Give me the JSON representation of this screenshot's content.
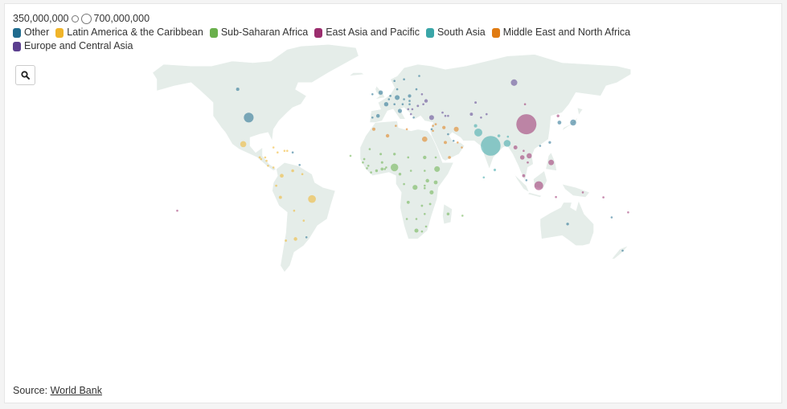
{
  "legend": {
    "size_small_label": "350,000,000",
    "size_large_label": "700,000,000",
    "categories": [
      {
        "label": "Other",
        "color": "#1f6b8e"
      },
      {
        "label": "Latin America & the Caribbean",
        "color": "#f0b429"
      },
      {
        "label": "Sub-Saharan Africa",
        "color": "#6ab04c"
      },
      {
        "label": "East Asia and Pacific",
        "color": "#9b2d6e"
      },
      {
        "label": "South Asia",
        "color": "#3aa6a8"
      },
      {
        "label": "Middle East and North Africa",
        "color": "#e07b12"
      },
      {
        "label": "Europe and Central Asia",
        "color": "#5b3f8f"
      }
    ]
  },
  "map": {
    "land_color": "#e5ede9",
    "bubble_opacity": 0.55,
    "bubbles": [
      {
        "lon": 104,
        "lat": 35,
        "pop": 1400,
        "region": "East Asia and Pacific"
      },
      {
        "lon": 78,
        "lat": 22,
        "pop": 1350,
        "region": "South Asia"
      },
      {
        "lon": -98,
        "lat": 39,
        "pop": 330,
        "region": "Other"
      },
      {
        "lon": 113,
        "lat": -2,
        "pop": 270,
        "region": "East Asia and Pacific"
      },
      {
        "lon": 69,
        "lat": 30,
        "pop": 220,
        "region": "South Asia"
      },
      {
        "lon": -52,
        "lat": -10,
        "pop": 210,
        "region": "Latin America & the Caribbean"
      },
      {
        "lon": 8,
        "lat": 9,
        "pop": 200,
        "region": "Sub-Saharan Africa"
      },
      {
        "lon": 90,
        "lat": 23.5,
        "pop": 165,
        "region": "South Asia"
      },
      {
        "lon": 95,
        "lat": 60,
        "pop": 145,
        "region": "Europe and Central Asia"
      },
      {
        "lon": -102,
        "lat": 23,
        "pop": 128,
        "region": "Latin America & the Caribbean"
      },
      {
        "lon": 138,
        "lat": 36,
        "pop": 126,
        "region": "Other"
      },
      {
        "lon": 39,
        "lat": 8,
        "pop": 112,
        "region": "Sub-Saharan Africa"
      },
      {
        "lon": 122,
        "lat": 12,
        "pop": 108,
        "region": "East Asia and Pacific"
      },
      {
        "lon": 30,
        "lat": 26,
        "pop": 100,
        "region": "Middle East and North Africa"
      },
      {
        "lon": 106,
        "lat": 16,
        "pop": 96,
        "region": "East Asia and Pacific"
      },
      {
        "lon": 23,
        "lat": -3,
        "pop": 86,
        "region": "Sub-Saharan Africa"
      },
      {
        "lon": 35,
        "lat": 39,
        "pop": 82,
        "region": "Europe and Central Asia"
      },
      {
        "lon": 53,
        "lat": 32,
        "pop": 82,
        "region": "Middle East and North Africa"
      },
      {
        "lon": 10,
        "lat": 51,
        "pop": 83,
        "region": "Other"
      },
      {
        "lon": 101,
        "lat": 15,
        "pop": 69,
        "region": "East Asia and Pacific"
      },
      {
        "lon": -2,
        "lat": 54,
        "pop": 67,
        "region": "Other"
      },
      {
        "lon": 2,
        "lat": 47,
        "pop": 65,
        "region": "Other"
      },
      {
        "lon": 12,
        "lat": 43,
        "pop": 60,
        "region": "Other"
      },
      {
        "lon": 24,
        "lat": -29,
        "pop": 58,
        "region": "Sub-Saharan Africa"
      },
      {
        "lon": 35,
        "lat": -6,
        "pop": 58,
        "region": "Sub-Saharan Africa"
      },
      {
        "lon": 96,
        "lat": 21,
        "pop": 54,
        "region": "East Asia and Pacific"
      },
      {
        "lon": 38,
        "lat": 0,
        "pop": 52,
        "region": "Sub-Saharan Africa"
      },
      {
        "lon": 128,
        "lat": 36,
        "pop": 51,
        "region": "Other"
      },
      {
        "lon": -74,
        "lat": 4,
        "pop": 50,
        "region": "Latin America & the Caribbean"
      },
      {
        "lon": -4,
        "lat": 40,
        "pop": 47,
        "region": "Other"
      },
      {
        "lon": 32,
        "lat": 1,
        "pop": 45,
        "region": "Sub-Saharan Africa"
      },
      {
        "lon": -64,
        "lat": -34,
        "pop": 45,
        "region": "Latin America & the Caribbean"
      },
      {
        "lon": 3,
        "lat": 28,
        "pop": 43,
        "region": "Middle East and North Africa"
      },
      {
        "lon": 30,
        "lat": 15,
        "pop": 43,
        "region": "Sub-Saharan Africa"
      },
      {
        "lon": 44,
        "lat": 33,
        "pop": 40,
        "region": "Middle East and North Africa"
      },
      {
        "lon": 31,
        "lat": 49,
        "pop": 42,
        "region": "Europe and Central Asia"
      },
      {
        "lon": 67,
        "lat": 34,
        "pop": 38,
        "region": "South Asia"
      },
      {
        "lon": 19,
        "lat": 52,
        "pop": 38,
        "region": "Other"
      },
      {
        "lon": -106,
        "lat": 56,
        "pop": 38,
        "region": "Other"
      },
      {
        "lon": -7,
        "lat": 32,
        "pop": 37,
        "region": "Middle East and North Africa"
      },
      {
        "lon": 45,
        "lat": 24,
        "pop": 35,
        "region": "Middle East and North Africa"
      },
      {
        "lon": 64,
        "lat": 41,
        "pop": 34,
        "region": "Europe and Central Asia"
      },
      {
        "lon": -75,
        "lat": -9,
        "pop": 33,
        "region": "Latin America & the Caribbean"
      },
      {
        "lon": 102,
        "lat": 4,
        "pop": 32,
        "region": "East Asia and Pacific"
      },
      {
        "lon": 18,
        "lat": -12,
        "pop": 32,
        "region": "Sub-Saharan Africa"
      },
      {
        "lon": -1,
        "lat": 8,
        "pop": 31,
        "region": "Sub-Saharan Africa"
      },
      {
        "lon": 48,
        "lat": 15,
        "pop": 30,
        "region": "Middle East and North Africa"
      },
      {
        "lon": 84,
        "lat": 28,
        "pop": 29,
        "region": "South Asia"
      },
      {
        "lon": -66,
        "lat": 7,
        "pop": 28,
        "region": "Latin America & the Caribbean"
      },
      {
        "lon": 47,
        "lat": -19,
        "pop": 28,
        "region": "Sub-Saharan Africa"
      },
      {
        "lon": 134,
        "lat": -25,
        "pop": 26,
        "region": "Other"
      },
      {
        "lon": -5,
        "lat": 7,
        "pop": 26,
        "region": "Sub-Saharan Africa"
      },
      {
        "lon": 12,
        "lat": 5,
        "pop": 26,
        "region": "Sub-Saharan Africa"
      },
      {
        "lon": 127,
        "lat": 40,
        "pop": 26,
        "region": "East Asia and Pacific"
      },
      {
        "lon": 8,
        "lat": 17,
        "pop": 24,
        "region": "Sub-Saharan Africa"
      },
      {
        "lon": 121,
        "lat": 24,
        "pop": 24,
        "region": "Other"
      },
      {
        "lon": 81,
        "lat": 7.5,
        "pop": 22,
        "region": "South Asia"
      },
      {
        "lon": -2,
        "lat": 17,
        "pop": 20,
        "region": "Sub-Saharan Africa"
      },
      {
        "lon": -1,
        "lat": 12,
        "pop": 21,
        "region": "Sub-Saharan Africa"
      },
      {
        "lon": 34,
        "lat": -13,
        "pop": 19,
        "region": "Sub-Saharan Africa"
      },
      {
        "lon": 25,
        "lat": 46,
        "pop": 19,
        "region": "Europe and Central Asia"
      },
      {
        "lon": -71,
        "lat": -35,
        "pop": 19,
        "region": "Latin America & the Caribbean"
      },
      {
        "lon": 67,
        "lat": 48,
        "pop": 19,
        "region": "Europe and Central Asia"
      },
      {
        "lon": 28,
        "lat": -14,
        "pop": 18,
        "region": "Sub-Saharan Africa"
      },
      {
        "lon": 38,
        "lat": 35,
        "pop": 17,
        "region": "Middle East and North Africa"
      },
      {
        "lon": -90,
        "lat": 15,
        "pop": 17,
        "region": "Latin America & the Caribbean"
      },
      {
        "lon": 5,
        "lat": 52,
        "pop": 17,
        "region": "Other"
      },
      {
        "lon": 18,
        "lat": 15,
        "pop": 16,
        "region": "Sub-Saharan Africa"
      },
      {
        "lon": -14,
        "lat": 14,
        "pop": 16,
        "region": "Sub-Saharan Africa"
      },
      {
        "lon": -78,
        "lat": -2,
        "pop": 17,
        "region": "Latin America & the Caribbean"
      },
      {
        "lon": 30,
        "lat": -19,
        "pop": 15,
        "region": "Sub-Saharan Africa"
      },
      {
        "lon": 105,
        "lat": 12,
        "pop": 16,
        "region": "East Asia and Pacific"
      },
      {
        "lon": -11,
        "lat": 10,
        "pop": 13,
        "region": "Sub-Saharan Africa"
      },
      {
        "lon": 30,
        "lat": -2,
        "pop": 13,
        "region": "Sub-Saharan Africa"
      },
      {
        "lon": 9,
        "lat": 34,
        "pop": 12,
        "region": "Middle East and North Africa"
      },
      {
        "lon": 4,
        "lat": 50,
        "pop": 11,
        "region": "Other"
      },
      {
        "lon": -65,
        "lat": -17,
        "pop": 11,
        "region": "Latin America & the Caribbean"
      },
      {
        "lon": 2,
        "lat": 9,
        "pop": 12,
        "region": "Sub-Saharan Africa"
      },
      {
        "lon": 30,
        "lat": -3.5,
        "pop": 12,
        "region": "Sub-Saharan Africa"
      },
      {
        "lon": 30,
        "lat": 7,
        "pop": 11,
        "region": "Sub-Saharan Africa"
      },
      {
        "lon": -80,
        "lat": 21,
        "pop": 11,
        "region": "Latin America & the Caribbean"
      },
      {
        "lon": -8,
        "lat": 39,
        "pop": 10,
        "region": "Other"
      },
      {
        "lon": 22,
        "lat": 39,
        "pop": 10,
        "region": "Other"
      },
      {
        "lon": 15,
        "lat": 50,
        "pop": 10,
        "region": "Other"
      },
      {
        "lon": 36,
        "lat": 31,
        "pop": 10,
        "region": "Middle East and North Africa"
      },
      {
        "lon": 15,
        "lat": 62,
        "pop": 10,
        "region": "Other"
      },
      {
        "lon": 47,
        "lat": 40,
        "pop": 10,
        "region": "Europe and Central Asia"
      },
      {
        "lon": 19,
        "lat": 47,
        "pop": 10,
        "region": "Other"
      },
      {
        "lon": 28,
        "lat": 53,
        "pop": 9,
        "region": "Europe and Central Asia"
      },
      {
        "lon": 54,
        "lat": 24,
        "pop": 10,
        "region": "Middle East and North Africa"
      },
      {
        "lon": 71,
        "lat": 39,
        "pop": 9,
        "region": "Europe and Central Asia"
      },
      {
        "lon": 14,
        "lat": 47,
        "pop": 9,
        "region": "Other"
      },
      {
        "lon": 35,
        "lat": 32,
        "pop": 9,
        "region": "Other"
      },
      {
        "lon": 145,
        "lat": -6,
        "pop": 9,
        "region": "East Asia and Pacific"
      },
      {
        "lon": -72,
        "lat": 19,
        "pop": 11,
        "region": "Latin America & the Caribbean"
      },
      {
        "lon": -70,
        "lat": 19,
        "pop": 11,
        "region": "Latin America & the Caribbean"
      },
      {
        "lon": -86,
        "lat": 15,
        "pop": 10,
        "region": "Latin America & the Caribbean"
      },
      {
        "lon": 21,
        "lat": 44,
        "pop": 7,
        "region": "Europe and Central Asia"
      },
      {
        "lon": 8,
        "lat": 47,
        "pop": 9,
        "region": "Other"
      },
      {
        "lon": 1,
        "lat": 8,
        "pop": 8,
        "region": "Sub-Saharan Africa"
      },
      {
        "lon": -12,
        "lat": 8.5,
        "pop": 8,
        "region": "Sub-Saharan Africa"
      },
      {
        "lon": 102,
        "lat": 19,
        "pop": 7,
        "region": "East Asia and Pacific"
      },
      {
        "lon": 114,
        "lat": 22,
        "pop": 7,
        "region": "Other"
      },
      {
        "lon": 17,
        "lat": 32,
        "pop": 7,
        "region": "Middle East and North Africa"
      },
      {
        "lon": 36,
        "lat": 34,
        "pop": 7,
        "region": "Middle East and North Africa"
      },
      {
        "lon": -58,
        "lat": -23,
        "pop": 7,
        "region": "Latin America & the Caribbean"
      },
      {
        "lon": -89,
        "lat": 14,
        "pop": 7,
        "region": "Latin America & the Caribbean"
      },
      {
        "lon": -85,
        "lat": 13,
        "pop": 7,
        "region": "Latin America & the Caribbean"
      },
      {
        "lon": 75,
        "lat": 41,
        "pop": 7,
        "region": "Europe and Central Asia"
      },
      {
        "lon": 10,
        "lat": 56,
        "pop": 6,
        "region": "Other"
      },
      {
        "lon": 26,
        "lat": 64,
        "pop": 6,
        "region": "Other"
      },
      {
        "lon": 19,
        "lat": 49,
        "pop": 5,
        "region": "Other"
      },
      {
        "lon": 8,
        "lat": 61,
        "pop": 5,
        "region": "Other"
      },
      {
        "lon": 104,
        "lat": 1.3,
        "pop": 6,
        "region": "Other"
      },
      {
        "lon": -8,
        "lat": 53,
        "pop": 5,
        "region": "Other"
      },
      {
        "lon": 174,
        "lat": -41,
        "pop": 5,
        "region": "Other"
      },
      {
        "lon": 57,
        "lat": 21,
        "pop": 5,
        "region": "Middle East and North Africa"
      },
      {
        "lon": 15,
        "lat": -1,
        "pop": 5,
        "region": "Sub-Saharan Africa"
      },
      {
        "lon": -9,
        "lat": 6,
        "pop": 5,
        "region": "Sub-Saharan Africa"
      },
      {
        "lon": -10,
        "lat": 20,
        "pop": 5,
        "region": "Sub-Saharan Africa"
      },
      {
        "lon": 20,
        "lat": 7,
        "pop": 5,
        "region": "Sub-Saharan Africa"
      },
      {
        "lon": 38,
        "lat": 15,
        "pop": 4,
        "region": "Sub-Saharan Africa"
      },
      {
        "lon": -84,
        "lat": 10,
        "pop": 5,
        "region": "Latin America & the Caribbean"
      },
      {
        "lon": -80,
        "lat": 9,
        "pop": 4,
        "region": "Latin America & the Caribbean"
      },
      {
        "lon": -66,
        "lat": 18,
        "pop": 3,
        "region": "Other"
      },
      {
        "lon": -56,
        "lat": -33,
        "pop": 3,
        "region": "Other"
      },
      {
        "lon": 103,
        "lat": 47,
        "pop": 3,
        "region": "East Asia and Pacific"
      },
      {
        "lon": 45,
        "lat": 40,
        "pop": 3,
        "region": "Europe and Central Asia"
      },
      {
        "lon": 43,
        "lat": 42,
        "pop": 4,
        "region": "Europe and Central Asia"
      },
      {
        "lon": 20,
        "lat": 41,
        "pop": 3,
        "region": "Europe and Central Asia"
      },
      {
        "lon": 29,
        "lat": 47,
        "pop": 3,
        "region": "Europe and Central Asia"
      },
      {
        "lon": 18,
        "lat": 44,
        "pop": 3,
        "region": "Europe and Central Asia"
      },
      {
        "lon": 24,
        "lat": 56,
        "pop": 3,
        "region": "Other"
      },
      {
        "lon": 51,
        "lat": 25,
        "pop": 3,
        "region": "Other"
      },
      {
        "lon": 47,
        "lat": 29,
        "pop": 4,
        "region": "Other"
      },
      {
        "lon": 17,
        "lat": -22,
        "pop": 3,
        "region": "Sub-Saharan Africa"
      },
      {
        "lon": 24,
        "lat": -22,
        "pop": 2,
        "region": "Sub-Saharan Africa"
      },
      {
        "lon": 28,
        "lat": -29.5,
        "pop": 2,
        "region": "Sub-Saharan Africa"
      },
      {
        "lon": 31,
        "lat": -26.5,
        "pop": 1,
        "region": "Sub-Saharan Africa"
      },
      {
        "lon": -77,
        "lat": 18,
        "pop": 3,
        "region": "Latin America & the Caribbean"
      },
      {
        "lon": 166,
        "lat": -21,
        "pop": 1,
        "region": "Other"
      },
      {
        "lon": 160,
        "lat": -9,
        "pop": 1,
        "region": "East Asia and Pacific"
      },
      {
        "lon": 178,
        "lat": -18,
        "pop": 1,
        "region": "East Asia and Pacific"
      },
      {
        "lon": -61,
        "lat": 10.5,
        "pop": 1,
        "region": "Other"
      },
      {
        "lon": -15,
        "lat": 12,
        "pop": 2,
        "region": "Sub-Saharan Africa"
      },
      {
        "lon": -59,
        "lat": 5,
        "pop": 1,
        "region": "Latin America & the Caribbean"
      },
      {
        "lon": 57.5,
        "lat": -20,
        "pop": 1,
        "region": "Sub-Saharan Africa"
      },
      {
        "lon": 73,
        "lat": 3,
        "pop": 1,
        "region": "South Asia"
      },
      {
        "lon": -24,
        "lat": 16,
        "pop": 1,
        "region": "Sub-Saharan Africa"
      },
      {
        "lon": 90.5,
        "lat": 27.5,
        "pop": 1,
        "region": "South Asia"
      },
      {
        "lon": -150,
        "lat": -17,
        "pop": 1,
        "region": "East Asia and Pacific"
      },
      {
        "lon": 125.5,
        "lat": -8.8,
        "pop": 1,
        "region": "East Asia and Pacific"
      }
    ]
  },
  "source": {
    "prefix": "Source: ",
    "link_text": "World Bank"
  }
}
